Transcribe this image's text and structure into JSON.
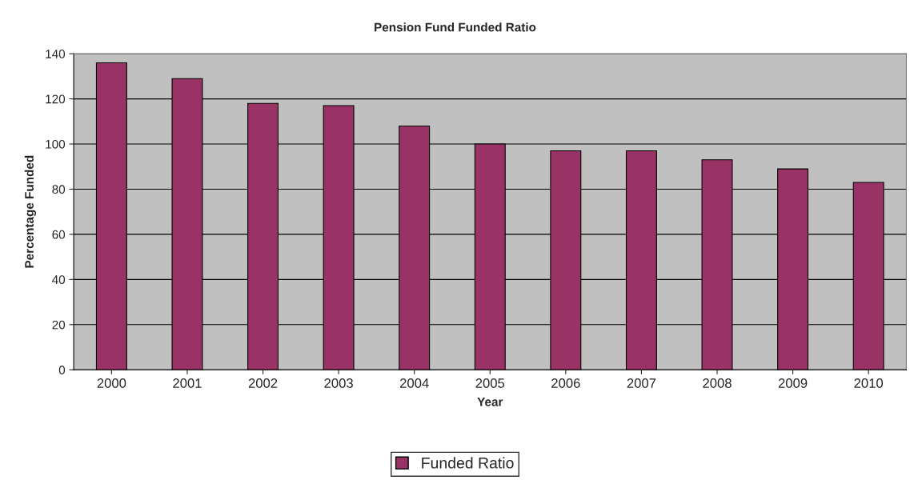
{
  "chart_data": {
    "type": "bar",
    "title": "Pension Fund Funded Ratio",
    "xlabel": "Year",
    "ylabel": "Percentage Funded",
    "categories": [
      "2000",
      "2001",
      "2002",
      "2003",
      "2004",
      "2005",
      "2006",
      "2007",
      "2008",
      "2009",
      "2010"
    ],
    "series": [
      {
        "name": "Funded Ratio",
        "color": "#993366",
        "values": [
          136,
          129,
          118,
          117,
          108,
          100,
          97,
          97,
          93,
          89,
          83
        ]
      }
    ],
    "ylim": [
      0,
      140
    ],
    "yticks": [
      0,
      20,
      40,
      60,
      80,
      100,
      120,
      140
    ],
    "grid": "y",
    "legend": "bottom"
  }
}
